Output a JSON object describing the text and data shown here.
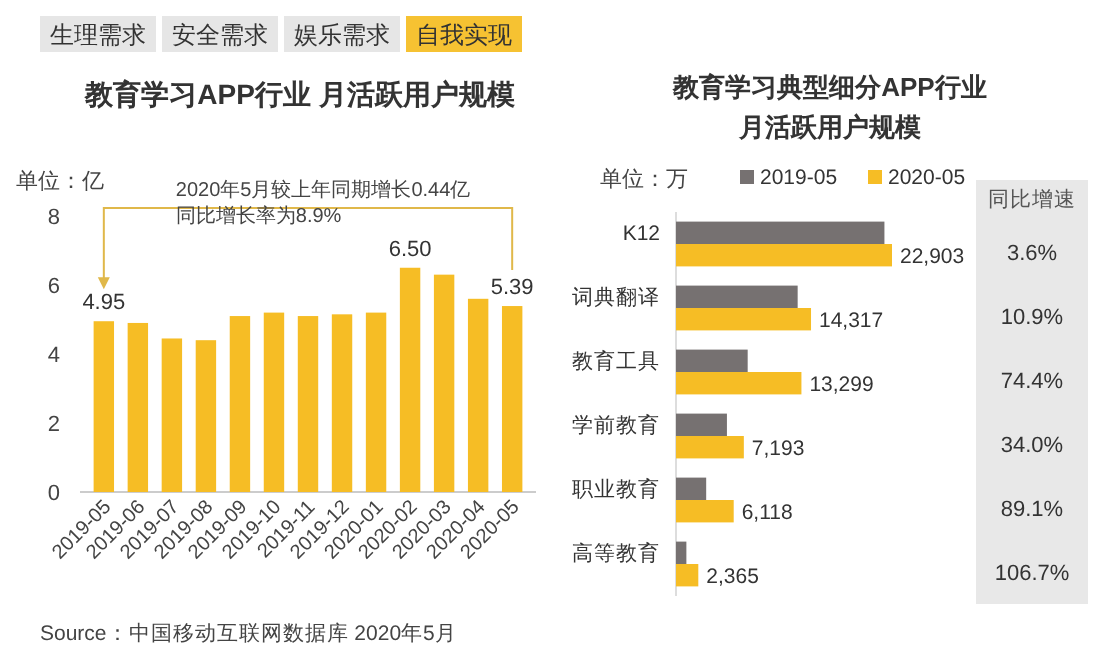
{
  "chart_data": [
    {
      "type": "other",
      "annotations": [
        "生理需求",
        "安全需求",
        "娱乐需求",
        "自我实现",
        "Source：中国移动互联网数据库 2020年5月"
      ]
    },
    {
      "type": "bar",
      "title": "教育学习APP行业 月活跃用户规模",
      "ylabel": "单位：亿",
      "categories": [
        "2019-05",
        "2019-06",
        "2019-07",
        "2019-08",
        "2019-09",
        "2019-10",
        "2019-11",
        "2019-12",
        "2020-01",
        "2020-02",
        "2020-03",
        "2020-04",
        "2020-05"
      ],
      "values": [
        4.95,
        4.9,
        4.45,
        4.4,
        5.1,
        5.2,
        5.1,
        5.15,
        5.2,
        6.5,
        6.3,
        5.6,
        5.39
      ],
      "value_labels": [
        "4.95",
        null,
        null,
        null,
        null,
        null,
        null,
        null,
        null,
        "6.50",
        null,
        null,
        "5.39"
      ],
      "color": "#f6bd25",
      "ylim": [
        0,
        8
      ],
      "yticks": [
        0,
        2,
        4,
        6,
        8
      ],
      "grid": false,
      "annotations": [
        "2020年5月较上年同期增长0.44亿",
        "同比增长率为8.9%"
      ]
    },
    {
      "type": "bar",
      "orientation": "horizontal",
      "title": "教育学习典型细分APP行业月活跃用户规模",
      "xlabel": "单位：万",
      "categories": [
        "K12",
        "词典翻译",
        "教育工具",
        "学前教育",
        "职业教育",
        "高等教育"
      ],
      "series": [
        {
          "name": "2019-05",
          "color": "#767171",
          "values": [
            22100,
            12900,
            7600,
            5400,
            3200,
            1100
          ]
        },
        {
          "name": "2020-05",
          "color": "#f6bd25",
          "values": [
            22903,
            14317,
            13299,
            7193,
            6118,
            2365
          ],
          "value_labels": [
            "22,903",
            "14,317",
            "13,299",
            "7,193",
            "6,118",
            "2,365"
          ]
        }
      ],
      "legend": "top",
      "annotations": [
        "同比增速",
        "3.6%",
        "10.9%",
        "74.4%",
        "34.0%",
        "89.1%",
        "106.7%"
      ]
    }
  ]
}
